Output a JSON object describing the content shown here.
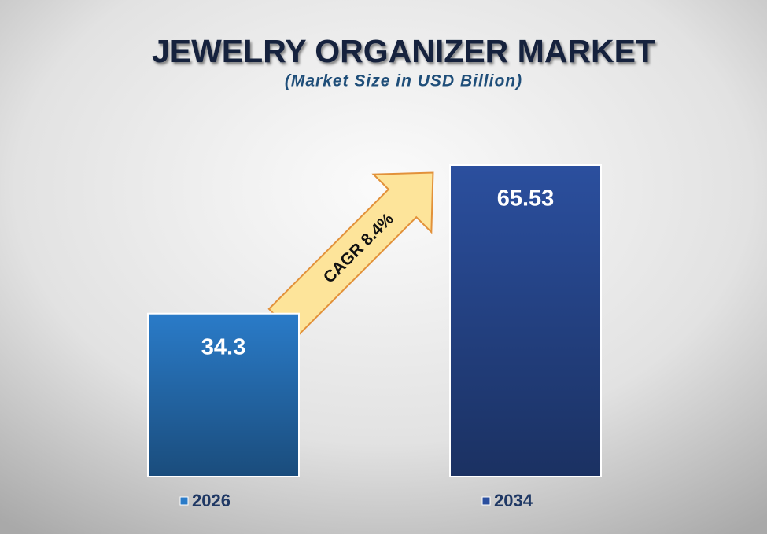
{
  "chart_data": {
    "type": "bar",
    "title": "JEWELRY ORGANIZER MARKET",
    "subtitle": "(Market Size in USD Billion)",
    "annotation": "CAGR 8.4%",
    "categories": [
      "2026",
      "2034"
    ],
    "values": [
      34.3,
      65.53
    ],
    "colors": [
      "#2a7bc8",
      "#2b4f9e"
    ]
  }
}
